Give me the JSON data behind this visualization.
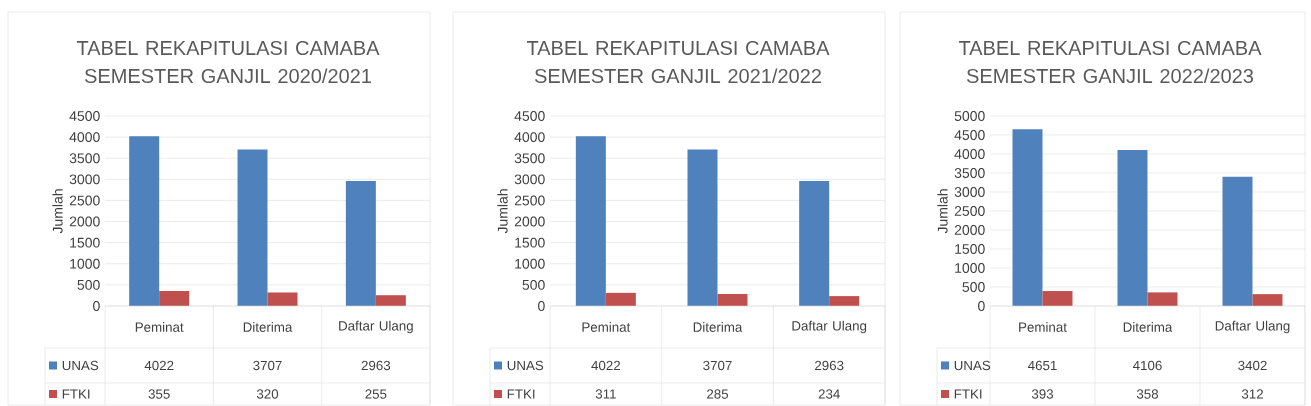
{
  "chart_data": [
    {
      "type": "bar",
      "title": "TABEL REKAPITULASI CAMABA SEMESTER GANJIL 2020/2021",
      "ylabel": "Jumlah",
      "categories": [
        "Peminat",
        "Diterima",
        "Daftar Ulang"
      ],
      "series": [
        {
          "name": "UNAS",
          "color": "#4f81bd",
          "values": [
            4022,
            3707,
            2963
          ]
        },
        {
          "name": "FTKI",
          "color": "#c0504d",
          "values": [
            355,
            320,
            255
          ]
        }
      ],
      "ylim": [
        0,
        4500
      ],
      "yticks": [
        0,
        500,
        1000,
        1500,
        2000,
        2500,
        3000,
        3500,
        4000,
        4500
      ],
      "grid": "y",
      "legend": "bottom",
      "data_labels": true
    },
    {
      "type": "bar",
      "title": "TABEL REKAPITULASI CAMABA SEMESTER GANJIL 2021/2022",
      "ylabel": "Jumlah",
      "categories": [
        "Peminat",
        "Diterima",
        "Daftar Ulang"
      ],
      "series": [
        {
          "name": "UNAS",
          "color": "#4f81bd",
          "values": [
            4022,
            3707,
            2963
          ]
        },
        {
          "name": "FTKI",
          "color": "#c0504d",
          "values": [
            311,
            285,
            234
          ]
        }
      ],
      "ylim": [
        0,
        4500
      ],
      "yticks": [
        0,
        500,
        1000,
        1500,
        2000,
        2500,
        3000,
        3500,
        4000,
        4500
      ],
      "grid": "y",
      "legend": "bottom",
      "data_labels": true
    },
    {
      "type": "bar",
      "title": "TABEL REKAPITULASI CAMABA SEMESTER GANJIL 2022/2023",
      "ylabel": "Jumlah",
      "categories": [
        "Peminat",
        "Diterima",
        "Daftar Ulang"
      ],
      "series": [
        {
          "name": "UNAS",
          "color": "#4f81bd",
          "values": [
            4651,
            4106,
            3402
          ]
        },
        {
          "name": "FTKI",
          "color": "#c0504d",
          "values": [
            393,
            358,
            312
          ]
        }
      ],
      "ylim": [
        0,
        5000
      ],
      "yticks": [
        0,
        500,
        1000,
        1500,
        2000,
        2500,
        3000,
        3500,
        4000,
        4500,
        5000
      ],
      "grid": "y",
      "legend": "bottom",
      "data_labels": true
    }
  ]
}
